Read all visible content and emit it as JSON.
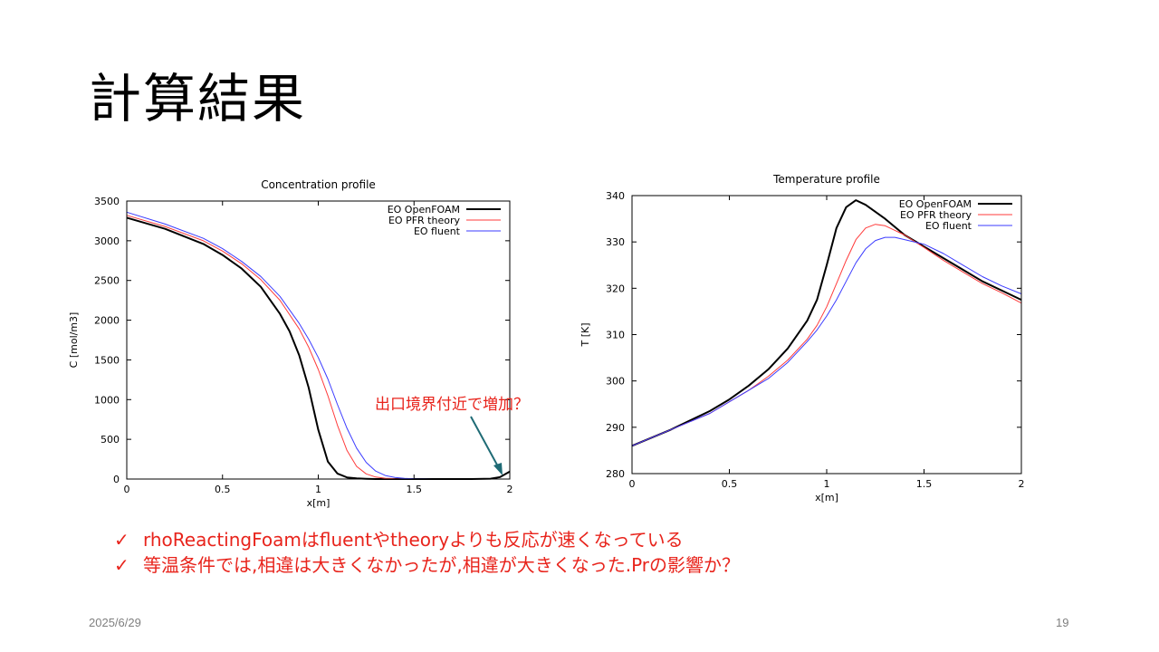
{
  "slide": {
    "title": "計算結果",
    "annotation": "出口境界付近で増加？",
    "bullets": [
      "rhoReactingFoamはfluentやtheoryよりも反応が速くなっている",
      "等温条件では,相違は大きくなかったが,相違が大きくなった.Prの影響か？"
    ],
    "check_icon": "✓",
    "date": "2025/6/29",
    "page_number": "19"
  },
  "colors": {
    "openfoam": "#000000",
    "pfr": "#ff3b3b",
    "fluent": "#3b3bff",
    "annotation": "#e8241c",
    "arrow": "#1f6b75"
  },
  "chart_data": [
    {
      "type": "line",
      "title": "Concentration profile",
      "xlabel": "x[m]",
      "ylabel": "C [mol/m3]",
      "xlim": [
        0,
        2
      ],
      "ylim": [
        0,
        3500
      ],
      "xticks": [
        "0",
        "0.5",
        "1",
        "1.5",
        "2"
      ],
      "yticks": [
        "0",
        "500",
        "1000",
        "1500",
        "2000",
        "2500",
        "3000",
        "3500"
      ],
      "legend_position": "top-right",
      "series": [
        {
          "name": "EO OpenFOAM",
          "color": "#000000",
          "width": 2,
          "x": [
            0,
            0.2,
            0.4,
            0.5,
            0.6,
            0.7,
            0.8,
            0.85,
            0.9,
            0.95,
            1.0,
            1.05,
            1.1,
            1.15,
            1.2,
            1.25,
            1.3,
            1.5,
            1.8,
            1.9,
            1.95,
            2.0
          ],
          "y": [
            3290,
            3150,
            2960,
            2820,
            2650,
            2420,
            2080,
            1860,
            1560,
            1150,
            620,
            220,
            70,
            20,
            8,
            3,
            0,
            0,
            0,
            5,
            25,
            95
          ]
        },
        {
          "name": "EO PFR theory",
          "color": "#ff3b3b",
          "width": 1,
          "x": [
            0,
            0.2,
            0.4,
            0.5,
            0.6,
            0.7,
            0.8,
            0.9,
            0.95,
            1.0,
            1.05,
            1.1,
            1.15,
            1.2,
            1.25,
            1.3,
            1.35,
            1.4,
            1.5,
            1.8,
            2.0
          ],
          "y": [
            3320,
            3180,
            3000,
            2870,
            2710,
            2510,
            2250,
            1890,
            1660,
            1380,
            1050,
            680,
            360,
            160,
            65,
            25,
            10,
            4,
            0,
            0,
            0
          ]
        },
        {
          "name": "EO fluent",
          "color": "#3b3bff",
          "width": 1,
          "x": [
            0,
            0.2,
            0.4,
            0.5,
            0.6,
            0.7,
            0.8,
            0.9,
            0.95,
            1.0,
            1.05,
            1.1,
            1.15,
            1.2,
            1.25,
            1.3,
            1.35,
            1.4,
            1.45,
            1.5,
            1.6,
            1.8,
            2.0
          ],
          "y": [
            3360,
            3210,
            3030,
            2900,
            2740,
            2550,
            2300,
            1960,
            1760,
            1530,
            1260,
            940,
            640,
            390,
            210,
            100,
            45,
            20,
            8,
            3,
            0,
            0,
            0
          ]
        }
      ]
    },
    {
      "type": "line",
      "title": "Temperature profile",
      "xlabel": "x[m]",
      "ylabel": "T [K]",
      "xlim": [
        0,
        2
      ],
      "ylim": [
        280,
        340
      ],
      "xticks": [
        "0",
        "0.5",
        "1",
        "1.5",
        "2"
      ],
      "yticks": [
        "280",
        "290",
        "300",
        "310",
        "320",
        "330",
        "340"
      ],
      "legend_position": "top-right",
      "series": [
        {
          "name": "EO OpenFOAM",
          "color": "#000000",
          "width": 2,
          "x": [
            0,
            0.2,
            0.4,
            0.5,
            0.6,
            0.7,
            0.8,
            0.9,
            0.95,
            1.0,
            1.05,
            1.1,
            1.15,
            1.2,
            1.3,
            1.4,
            1.5,
            1.6,
            1.7,
            1.8,
            1.9,
            2.0
          ],
          "y": [
            286,
            289.5,
            293.5,
            296,
            299,
            302.5,
            307,
            313,
            317.5,
            325,
            333,
            337.5,
            339,
            338,
            335,
            331.5,
            329,
            326.5,
            324,
            321.5,
            319.5,
            317.5
          ]
        },
        {
          "name": "EO PFR theory",
          "color": "#ff3b3b",
          "width": 1,
          "x": [
            0,
            0.2,
            0.4,
            0.5,
            0.6,
            0.7,
            0.8,
            0.9,
            0.95,
            1.0,
            1.05,
            1.1,
            1.15,
            1.2,
            1.25,
            1.3,
            1.4,
            1.5,
            1.6,
            1.7,
            1.8,
            1.9,
            2.0
          ],
          "y": [
            286,
            289.5,
            293,
            295.5,
            298,
            301,
            304.5,
            309,
            312,
            316,
            321,
            326,
            330.5,
            333,
            333.8,
            333.5,
            331.5,
            328.8,
            326,
            323.5,
            321,
            319,
            316.8
          ]
        },
        {
          "name": "EO fluent",
          "color": "#3b3bff",
          "width": 1,
          "x": [
            0,
            0.2,
            0.4,
            0.5,
            0.6,
            0.7,
            0.8,
            0.9,
            0.95,
            1.0,
            1.05,
            1.1,
            1.15,
            1.2,
            1.25,
            1.3,
            1.35,
            1.4,
            1.5,
            1.6,
            1.7,
            1.8,
            1.9,
            2.0
          ],
          "y": [
            286,
            289.5,
            293,
            295.5,
            298,
            300.5,
            304,
            308.5,
            311,
            314,
            317.5,
            321.5,
            325.5,
            328.5,
            330.3,
            331,
            331,
            330.5,
            329.5,
            327.5,
            325,
            322.5,
            320.5,
            318.8
          ]
        }
      ]
    }
  ]
}
